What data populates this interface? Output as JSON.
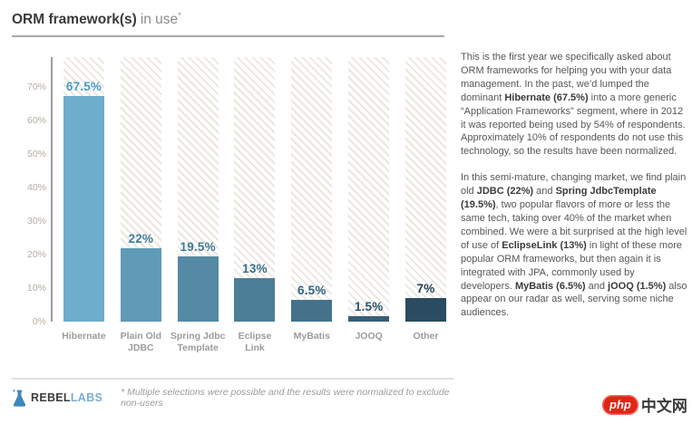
{
  "title": {
    "main": "ORM framework(s)",
    "sub": "in use",
    "asterisk": "*"
  },
  "chart_data": {
    "type": "bar",
    "title": "ORM framework(s) in use",
    "categories": [
      "Hibernate",
      "Plain Old JDBC",
      "Spring Jdbc Template",
      "Eclipse Link",
      "MyBatis",
      "JOOQ",
      "Other"
    ],
    "category_lines": [
      [
        "Hibernate"
      ],
      [
        "Plain Old",
        "JDBC"
      ],
      [
        "Spring Jdbc",
        "Template"
      ],
      [
        "Eclipse",
        "Link"
      ],
      [
        "MyBatis"
      ],
      [
        "JOOQ"
      ],
      [
        "Other"
      ]
    ],
    "values": [
      67.5,
      22,
      19.5,
      13,
      6.5,
      1.5,
      7
    ],
    "value_labels": [
      "67.5%",
      "22%",
      "19.5%",
      "13%",
      "6.5%",
      "1.5%",
      "7%"
    ],
    "xlabel": "",
    "ylabel": "",
    "ylim": [
      0,
      79
    ],
    "yticks": [
      0,
      10,
      20,
      30,
      40,
      50,
      60,
      70
    ],
    "ytick_labels": [
      "0%",
      "10%",
      "20%",
      "30%",
      "40%",
      "50%",
      "60%",
      "70%"
    ],
    "grid": false,
    "legend": false,
    "bar_colors": [
      "#6eadcc",
      "#5f9ab6",
      "#5589a4",
      "#4d7e97",
      "#45728a",
      "#395f75",
      "#2b4b60"
    ],
    "label_colors": [
      "#4d9cc7",
      "#417ea0",
      "#3d7a9b",
      "#38708c",
      "#30637e",
      "#2a556d",
      "#1f4259"
    ]
  },
  "commentary": {
    "paragraph1": [
      {
        "t": "This is the first year we specifically asked about ORM frameworks for helping you with your data management. In the past, we’d lumped the dominant ",
        "b": false
      },
      {
        "t": "Hibernate (67.5%)",
        "b": true
      },
      {
        "t": " into a more generic “Application Frameworks” segment, where in 2012 it was reported being used by 54% of respondents. Approximately 10% of respondents do not use this technology, so the results have been normalized.",
        "b": false
      }
    ],
    "paragraph2": [
      {
        "t": "In this semi-mature, changing market, we find plain old ",
        "b": false
      },
      {
        "t": "JDBC (22%)",
        "b": true
      },
      {
        "t": " and ",
        "b": false
      },
      {
        "t": "Spring JdbcTemplate (19.5%)",
        "b": true
      },
      {
        "t": ", two popular flavors of more or less the same tech, taking over 40% of the market when combined. We were a bit surprised at the high level of use of ",
        "b": false
      },
      {
        "t": "EclipseLink (13%)",
        "b": true
      },
      {
        "t": " in light of these more popular ORM frameworks, but then again it is integrated with JPA, commonly used by developers. ",
        "b": false
      },
      {
        "t": "MyBatis (6.5%)",
        "b": true
      },
      {
        "t": " and ",
        "b": false
      },
      {
        "t": "jOOQ (1.5%)",
        "b": true
      },
      {
        "t": " also appear on our radar as well, serving some niche audiences.",
        "b": false
      }
    ]
  },
  "footer": {
    "logo_rebel": "REBEL",
    "logo_labs": "LABS",
    "footnote": "* Multiple selections were possible and the results were normalized to exclude non-users"
  },
  "watermark": {
    "php": "php",
    "cn": "中文网"
  }
}
